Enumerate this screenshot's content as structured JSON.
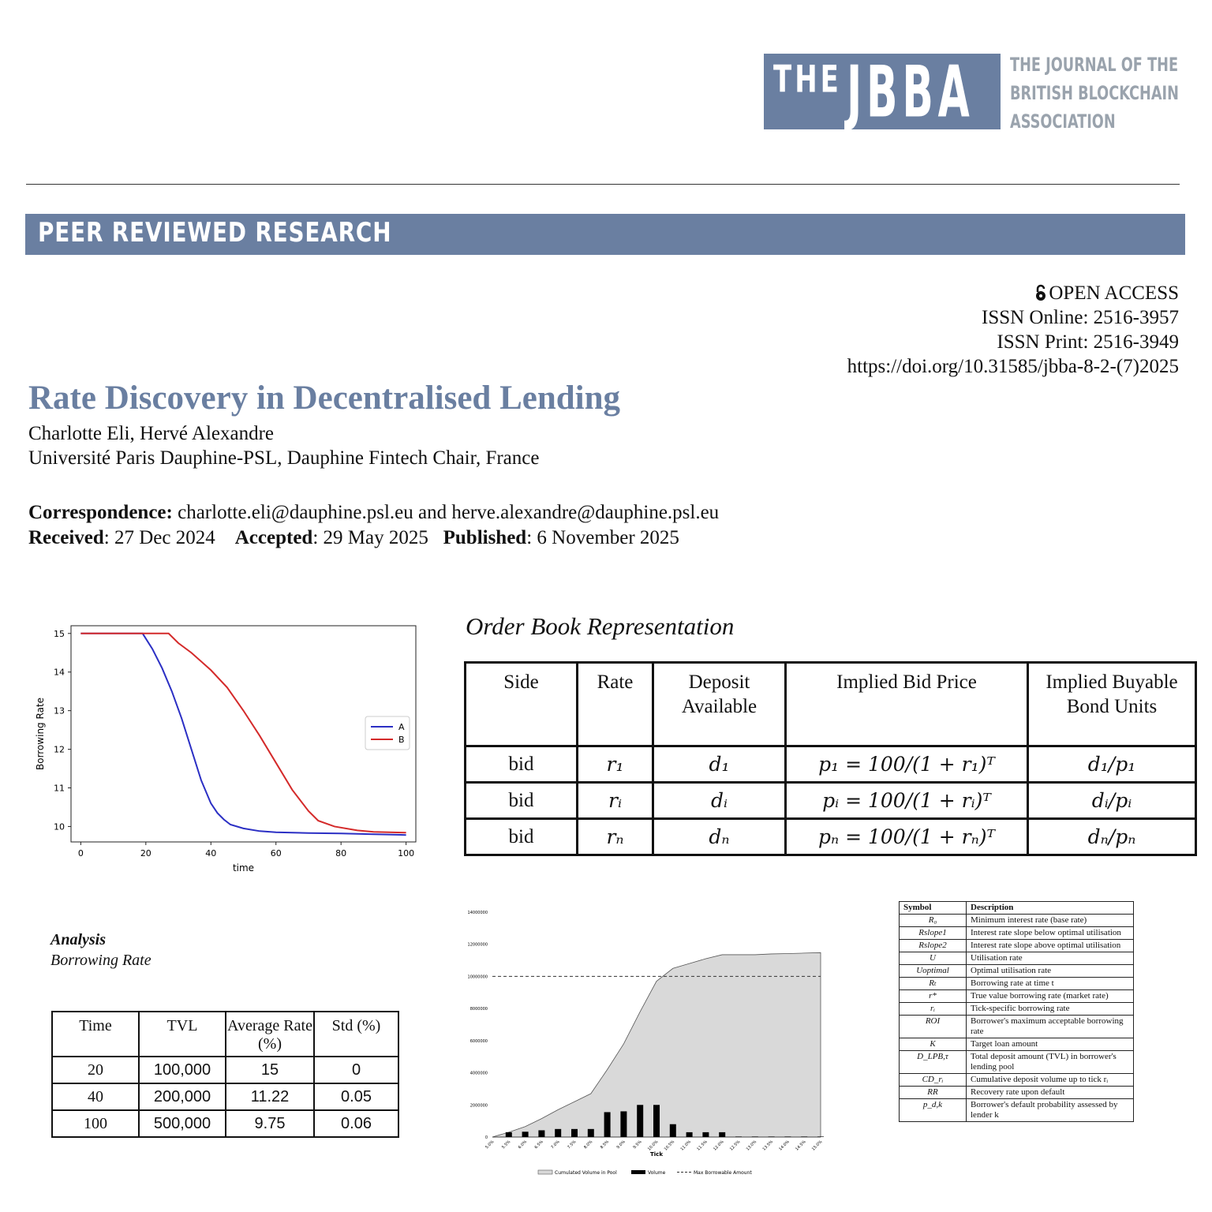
{
  "logo": {
    "the": "THE",
    "jbba": "JBBA",
    "subtitle_lines": [
      "THE JOURNAL OF THE",
      "BRITISH BLOCKCHAIN",
      "ASSOCIATION"
    ]
  },
  "banner": "PEER REVIEWED RESEARCH",
  "meta": {
    "open_access": "OPEN ACCESS",
    "issn_online": "ISSN Online: 2516-3957",
    "issn_print": "ISSN Print: 2516-3949",
    "doi": "https://doi.org/10.31585/jbba-8-2-(7)2025"
  },
  "paper": {
    "title": "Rate Discovery in Decentralised Lending",
    "authors": "Charlotte Eli, Hervé Alexandre",
    "affiliation": "Université Paris Dauphine-PSL, Dauphine Fintech Chair, France",
    "correspondence_label": "Correspondence:",
    "correspondence": "charlotte.eli@dauphine.psl.eu and herve.alexandre@dauphine.psl.eu",
    "received_label": "Received",
    "received": ": 27 Dec 2024",
    "accepted_label": "Accepted",
    "accepted": ": 29 May 2025",
    "published_label": "Published",
    "published": ": 6 November 2025"
  },
  "order_book": {
    "title": "Order Book Representation",
    "headers": [
      "Side",
      "Rate",
      "Deposit Available",
      "Implied Bid Price",
      "Implied Buyable Bond Units"
    ],
    "rows": [
      [
        "bid",
        "r₁",
        "d₁",
        "p₁ = 100/(1 + r₁)ᵀ",
        "d₁/p₁"
      ],
      [
        "bid",
        "rᵢ",
        "dᵢ",
        "pᵢ = 100/(1 + rᵢ)ᵀ",
        "dᵢ/pᵢ"
      ],
      [
        "bid",
        "rₙ",
        "dₙ",
        "pₙ = 100/(1 + rₙ)ᵀ",
        "dₙ/pₙ"
      ]
    ]
  },
  "analysis": {
    "title": "Analysis",
    "subtitle": "Borrowing Rate",
    "headers": [
      "Time",
      "TVL",
      "Average Rate (%)",
      "Std (%)"
    ],
    "rows": [
      [
        "20",
        "100,000",
        "15",
        "0"
      ],
      [
        "40",
        "200,000",
        "11.22",
        "0.05"
      ],
      [
        "100",
        "500,000",
        "9.75",
        "0.06"
      ]
    ]
  },
  "symbols": {
    "headers": [
      "Symbol",
      "Description"
    ],
    "rows": [
      [
        "R₀",
        "Minimum interest rate (base rate)"
      ],
      [
        "Rslope1",
        "Interest rate slope below optimal utilisation"
      ],
      [
        "Rslope2",
        "Interest rate slope above optimal utilisation"
      ],
      [
        "U",
        "Utilisation rate"
      ],
      [
        "Uoptimal",
        "Optimal utilisation rate"
      ],
      [
        "Rₜ",
        "Borrowing rate at time t"
      ],
      [
        "r*",
        "True value borrowing rate (market rate)"
      ],
      [
        "rᵢ",
        "Tick-specific borrowing rate"
      ],
      [
        "ROI",
        "Borrower's maximum acceptable borrowing rate"
      ],
      [
        "K",
        "Target loan amount"
      ],
      [
        "D_LPB,τ",
        "Total deposit amount (TVL) in borrower's lending pool"
      ],
      [
        "CD_rᵢ",
        "Cumulative deposit volume up to tick rᵢ"
      ],
      [
        "RR",
        "Recovery rate upon default"
      ],
      [
        "p_d,k",
        "Borrower's default probability assessed by lender k"
      ]
    ]
  },
  "chart_data": [
    {
      "type": "line",
      "title": "",
      "xlabel": "time",
      "ylabel": "Borrowing Rate",
      "xlim": [
        -3,
        103
      ],
      "ylim": [
        9.6,
        15.2
      ],
      "xticks": [
        0,
        20,
        40,
        60,
        80,
        100
      ],
      "yticks": [
        10,
        11,
        12,
        13,
        14,
        15
      ],
      "legend_position": "right",
      "series": [
        {
          "name": "A",
          "color": "#2b2fc4",
          "x": [
            0,
            19,
            22,
            25,
            28,
            31,
            34,
            37,
            40,
            42,
            44,
            46,
            50,
            55,
            60,
            70,
            80,
            90,
            100
          ],
          "y": [
            15,
            15,
            14.6,
            14.1,
            13.5,
            12.8,
            12.0,
            11.2,
            10.6,
            10.35,
            10.18,
            10.05,
            9.95,
            9.88,
            9.85,
            9.83,
            9.82,
            9.8,
            9.78
          ]
        },
        {
          "name": "B",
          "color": "#d42a2a",
          "x": [
            0,
            27,
            30,
            34,
            40,
            45,
            50,
            55,
            60,
            65,
            70,
            73,
            78,
            85,
            90,
            100
          ],
          "y": [
            15,
            15,
            14.75,
            14.5,
            14.05,
            13.6,
            13.0,
            12.35,
            11.65,
            10.95,
            10.4,
            10.15,
            10.0,
            9.9,
            9.86,
            9.84
          ]
        }
      ]
    },
    {
      "type": "bar",
      "title": "",
      "xlabel": "Tick",
      "ylabel": "",
      "ylim": [
        0,
        14000000
      ],
      "yticks": [
        0,
        2000000,
        4000000,
        6000000,
        8000000,
        10000000,
        12000000,
        14000000
      ],
      "categories": [
        "5.0%",
        "5.5%",
        "6.0%",
        "6.5%",
        "7.0%",
        "7.5%",
        "8.0%",
        "8.5%",
        "9.0%",
        "9.5%",
        "10.0%",
        "10.5%",
        "11.0%",
        "11.5%",
        "12.0%",
        "12.5%",
        "13.0%",
        "13.5%",
        "14.0%",
        "14.5%",
        "15.0%"
      ],
      "legend_position": "bottom",
      "series": [
        {
          "name": "Cumulated Volume in Pool",
          "kind": "area",
          "color": "#d9d9d9",
          "values": [
            0,
            300000,
            650000,
            1150000,
            1700000,
            2200000,
            2700000,
            4200000,
            5800000,
            7800000,
            9700000,
            10500000,
            10800000,
            11100000,
            11350000,
            11350000,
            11350000,
            11400000,
            11420000,
            11450000,
            11480000
          ]
        },
        {
          "name": "Volume",
          "kind": "bar",
          "color": "#000000",
          "values": [
            0,
            300000,
            330000,
            420000,
            500000,
            500000,
            500000,
            1550000,
            1600000,
            2000000,
            2000000,
            800000,
            300000,
            300000,
            300000,
            30000,
            30000,
            30000,
            30000,
            30000,
            30000
          ]
        },
        {
          "name": "Max Borrowable Amount",
          "kind": "hline",
          "color": "#333333",
          "value": 10000000
        }
      ]
    }
  ]
}
